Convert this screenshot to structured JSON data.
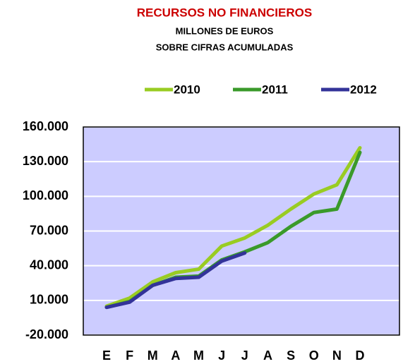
{
  "chart_data": {
    "type": "line",
    "title": "RECURSOS NO FINANCIEROS",
    "subtitle": [
      "MILLONES DE EUROS",
      "SOBRE CIFRAS ACUMULADAS"
    ],
    "categories": [
      "E",
      "F",
      "M",
      "A",
      "M",
      "J",
      "J",
      "A",
      "S",
      "O",
      "N",
      "D"
    ],
    "series": [
      {
        "name": "2010",
        "color": "#99cc22",
        "values": [
          5000,
          12000,
          26000,
          34000,
          37000,
          57000,
          64000,
          75000,
          89000,
          102000,
          110000,
          142000
        ]
      },
      {
        "name": "2011",
        "color": "#3a9a2a",
        "values": [
          4000,
          9000,
          23000,
          30000,
          31000,
          45000,
          52000,
          60000,
          74000,
          86000,
          89000,
          138000
        ]
      },
      {
        "name": "2012",
        "color": "#333399",
        "values": [
          4000,
          8500,
          23000,
          29000,
          30000,
          44000,
          51000,
          null,
          null,
          null,
          null,
          null
        ]
      }
    ],
    "ylim": [
      -20000,
      160000
    ],
    "yticks": [
      {
        "value": -20000,
        "label": "-20.000"
      },
      {
        "value": 10000,
        "label": "10.000"
      },
      {
        "value": 40000,
        "label": "40.000"
      },
      {
        "value": 70000,
        "label": "70.000"
      },
      {
        "value": 100000,
        "label": "100.000"
      },
      {
        "value": 130000,
        "label": "130.000"
      },
      {
        "value": 160000,
        "label": "160.000"
      }
    ],
    "grid": true,
    "legend": "top",
    "plot_background": "#ccccff"
  }
}
